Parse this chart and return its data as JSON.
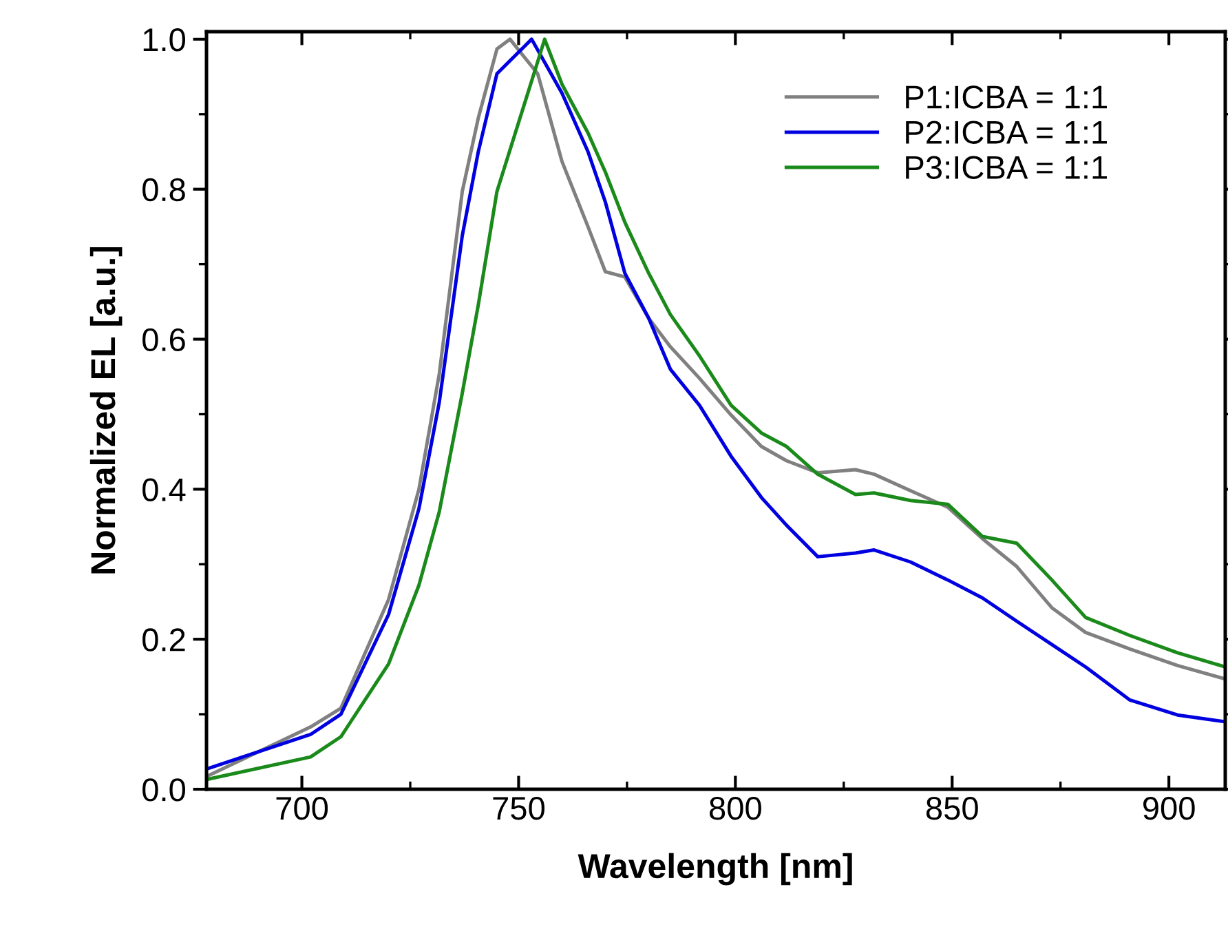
{
  "chart_data": {
    "type": "line",
    "xlabel": "Wavelength [nm]",
    "ylabel": "Normalized EL [a.u.]",
    "xlim": [
      678,
      913
    ],
    "ylim": [
      0,
      1.01
    ],
    "xticks": [
      700,
      750,
      800,
      850,
      900
    ],
    "yticks": [
      {
        "value": 0,
        "label": "0.0"
      },
      {
        "value": 0.2,
        "label": "0.2"
      },
      {
        "value": 0.4,
        "label": "0.4"
      },
      {
        "value": 0.6,
        "label": "0.6"
      },
      {
        "value": 0.8,
        "label": "0.8"
      },
      {
        "value": 1,
        "label": "1.0"
      }
    ],
    "grid": false,
    "legend": "top right",
    "marker": "none",
    "line_style": "solid",
    "series": [
      {
        "name": "P1:ICBA = 1:1",
        "color": "#808080",
        "x": [
          678,
          702,
          709,
          720,
          727,
          731.7,
          737,
          740.7,
          745,
          748,
          754.4,
          760,
          766,
          770,
          774.5,
          780,
          785,
          791.7,
          799,
          806,
          811.8,
          819,
          827.7,
          832,
          840.4,
          849,
          857,
          864.9,
          873,
          880.8,
          891,
          902,
          913
        ],
        "values": [
          0.017,
          0.083,
          0.108,
          0.253,
          0.4,
          0.554,
          0.797,
          0.895,
          0.987,
          1.0,
          0.954,
          0.837,
          0.75,
          0.69,
          0.683,
          0.628,
          0.59,
          0.548,
          0.499,
          0.457,
          0.438,
          0.422,
          0.426,
          0.42,
          0.398,
          0.376,
          0.334,
          0.297,
          0.242,
          0.209,
          0.187,
          0.165,
          0.147
        ]
      },
      {
        "name": "P2:ICBA = 1:1",
        "color": "#0000e0",
        "x": [
          678,
          702,
          709,
          720,
          727,
          731.7,
          737,
          740.7,
          745,
          753,
          760,
          766,
          770,
          774.5,
          780,
          785,
          791.7,
          799,
          806,
          811.8,
          819,
          827.7,
          832,
          840.4,
          849,
          857,
          864.9,
          873,
          880.8,
          891,
          902,
          913
        ],
        "values": [
          0.027,
          0.073,
          0.1,
          0.233,
          0.374,
          0.516,
          0.738,
          0.85,
          0.954,
          1.0,
          0.928,
          0.85,
          0.783,
          0.688,
          0.628,
          0.56,
          0.512,
          0.444,
          0.389,
          0.352,
          0.31,
          0.315,
          0.319,
          0.303,
          0.279,
          0.255,
          0.224,
          0.193,
          0.163,
          0.119,
          0.099,
          0.09
        ]
      },
      {
        "name": "P3:ICBA = 1:1",
        "color": "#1a8a1a",
        "x": [
          678,
          702,
          709,
          720,
          727,
          731.7,
          737,
          740.7,
          745,
          754.4,
          756,
          760,
          766,
          770,
          774.5,
          780,
          785,
          791.7,
          799,
          806,
          811.8,
          819,
          827.7,
          832,
          840.4,
          849,
          857,
          864.9,
          873,
          880.8,
          891,
          902,
          913
        ],
        "values": [
          0.013,
          0.043,
          0.07,
          0.167,
          0.272,
          0.37,
          0.528,
          0.646,
          0.797,
          0.97,
          1.0,
          0.94,
          0.875,
          0.823,
          0.756,
          0.688,
          0.633,
          0.578,
          0.512,
          0.475,
          0.457,
          0.42,
          0.393,
          0.395,
          0.385,
          0.38,
          0.337,
          0.328,
          0.279,
          0.229,
          0.205,
          0.182,
          0.163
        ]
      }
    ]
  }
}
